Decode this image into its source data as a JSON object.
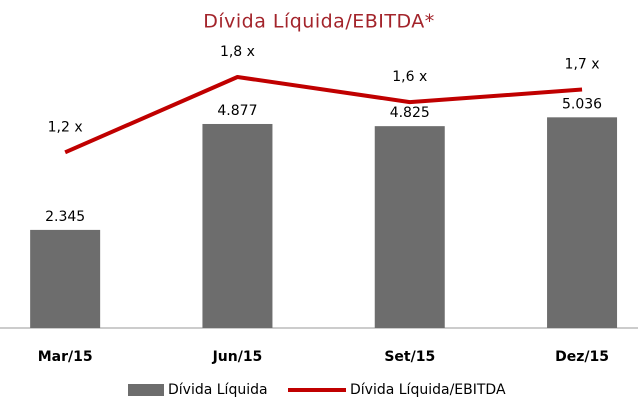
{
  "chart_data": {
    "type": "bar+line",
    "title": "Dívida Líquida/EBITDA*",
    "categories": [
      "Mar/15",
      "Jun/15",
      "Set/15",
      "Dez/15"
    ],
    "series": [
      {
        "name": "Dívida Líquida",
        "type": "bar",
        "color": "#6d6d6d",
        "values": [
          2345,
          4877,
          4825,
          5036
        ],
        "value_labels": [
          "2.345",
          "4.877",
          "4.825",
          "5.036"
        ]
      },
      {
        "name": "Dívida Líquida/EBITDA",
        "type": "line",
        "axis": "y2",
        "color": "#c00000",
        "values": [
          1.2,
          1.8,
          1.6,
          1.7
        ],
        "value_labels": [
          "1,2 x",
          "1,8 x",
          "1,6 x",
          "1,7 x"
        ]
      }
    ],
    "ylim": [
      0,
      6000
    ],
    "y2lim": [
      -0.2,
      1.8
    ],
    "legend": "bottom"
  }
}
